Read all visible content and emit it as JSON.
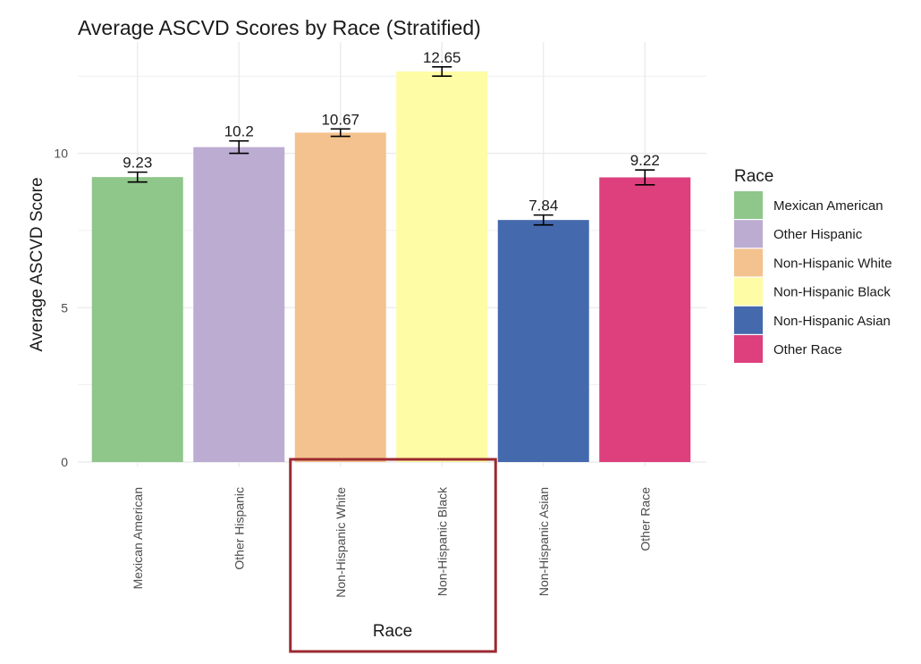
{
  "chart_data": {
    "type": "bar",
    "title": "Average ASCVD Scores by Race (Stratified)",
    "xlabel": "Race",
    "ylabel": "Average ASCVD Score",
    "categories": [
      "Mexican American",
      "Other Hispanic",
      "Non-Hispanic White",
      "Non-Hispanic Black",
      "Non-Hispanic Asian",
      "Other Race"
    ],
    "values": [
      9.23,
      10.2,
      10.67,
      12.65,
      7.84,
      9.22
    ],
    "value_labels": [
      "9.23",
      "10.2",
      "10.67",
      "12.65",
      "7.84",
      "9.22"
    ],
    "error_low": [
      9.07,
      10.0,
      10.55,
      12.5,
      7.68,
      8.98
    ],
    "error_high": [
      9.39,
      10.4,
      10.79,
      12.8,
      8.0,
      9.46
    ],
    "colors": [
      "#8fc68a",
      "#bcacd2",
      "#f4c28e",
      "#fefca4",
      "#4569ad",
      "#de3f7d"
    ],
    "ylim": [
      0,
      12.65
    ],
    "y_ticks": [
      0,
      5,
      10
    ],
    "y_tick_labels": [
      "0",
      "5",
      "10"
    ],
    "grid": true,
    "legend": {
      "title": "Race",
      "position": "right",
      "entries": [
        "Mexican American",
        "Other Hispanic",
        "Non-Hispanic White",
        "Non-Hispanic Black",
        "Non-Hispanic Asian",
        "Other Race"
      ]
    },
    "highlight": {
      "categories": [
        "Non-Hispanic White",
        "Non-Hispanic Black"
      ],
      "color": "#9b2a30"
    }
  }
}
